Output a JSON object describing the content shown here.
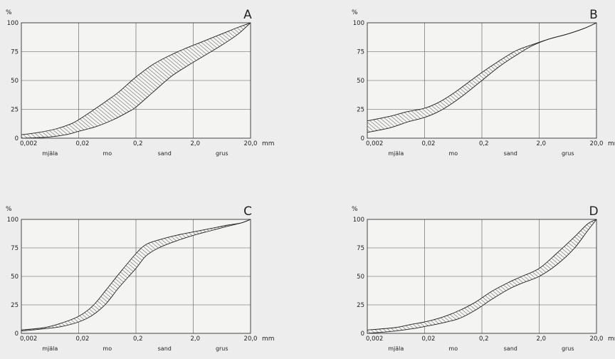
{
  "chart_data": [
    {
      "type": "area",
      "title": "A",
      "ylabel": "%",
      "xunit": "mm",
      "x_scale": "log",
      "xlim": [
        0.002,
        20.0
      ],
      "ylim": [
        0,
        100
      ],
      "xticks": [
        "0,002",
        "0,02",
        "0,2",
        "2,0",
        "20,0"
      ],
      "yticks": [
        "0",
        "25",
        "50",
        "75",
        "100"
      ],
      "soil_classes": [
        "mjäla",
        "mo",
        "sand",
        "grus"
      ],
      "grid": true,
      "series": [
        {
          "x": [
            0.002,
            0.004,
            0.008,
            0.014,
            0.02,
            0.035,
            0.06,
            0.1,
            0.2,
            0.4,
            0.8,
            1.5,
            3,
            6,
            12,
            20
          ],
          "values": [
            3,
            5,
            8,
            12,
            16,
            24,
            32,
            40,
            53,
            64,
            72,
            78,
            84,
            90,
            96,
            100
          ]
        },
        {
          "x": [
            0.002,
            0.006,
            0.012,
            0.02,
            0.04,
            0.08,
            0.15,
            0.2,
            0.4,
            0.8,
            1.5,
            3,
            6,
            12,
            20
          ],
          "values": [
            0,
            1,
            3,
            6,
            10,
            16,
            23,
            27,
            40,
            53,
            62,
            71,
            80,
            90,
            100
          ]
        }
      ]
    },
    {
      "type": "area",
      "title": "B",
      "ylabel": "%",
      "xunit": "mm",
      "x_scale": "log",
      "xlim": [
        0.002,
        20.0
      ],
      "ylim": [
        0,
        100
      ],
      "xticks": [
        "0,002",
        "0,02",
        "0,2",
        "2,0",
        "20,0"
      ],
      "yticks": [
        "0",
        "25",
        "50",
        "75",
        "100"
      ],
      "soil_classes": [
        "mjäla",
        "mo",
        "sand",
        "grus"
      ],
      "grid": true,
      "series": [
        {
          "x": [
            0.002,
            0.005,
            0.01,
            0.02,
            0.035,
            0.06,
            0.1,
            0.2,
            0.4,
            0.8,
            1.5,
            3,
            6,
            12,
            20
          ],
          "values": [
            15,
            19,
            23,
            26,
            31,
            38,
            46,
            57,
            67,
            76,
            81,
            86,
            90,
            95,
            100
          ]
        },
        {
          "x": [
            0.002,
            0.005,
            0.01,
            0.02,
            0.035,
            0.06,
            0.1,
            0.2,
            0.4,
            0.8,
            1.5,
            3,
            6,
            12,
            20
          ],
          "values": [
            5,
            9,
            14,
            18,
            23,
            30,
            38,
            50,
            62,
            72,
            80,
            86,
            90,
            95,
            100
          ]
        }
      ]
    },
    {
      "type": "area",
      "title": "C",
      "ylabel": "%",
      "xunit": "mm",
      "x_scale": "log",
      "xlim": [
        0.002,
        20.0
      ],
      "ylim": [
        0,
        100
      ],
      "xticks": [
        "0,002",
        "0,02",
        "0,2",
        "2,0",
        "20,0"
      ],
      "yticks": [
        "0",
        "25",
        "50",
        "75",
        "100"
      ],
      "soil_classes": [
        "mjäla",
        "mo",
        "sand",
        "grus"
      ],
      "grid": true,
      "series": [
        {
          "x": [
            0.002,
            0.005,
            0.01,
            0.02,
            0.035,
            0.06,
            0.1,
            0.2,
            0.3,
            0.5,
            1,
            2,
            4,
            8,
            14,
            20
          ],
          "values": [
            3,
            5,
            9,
            15,
            24,
            38,
            52,
            70,
            78,
            82,
            86,
            89,
            92,
            95,
            97,
            100
          ]
        },
        {
          "x": [
            0.002,
            0.005,
            0.01,
            0.02,
            0.035,
            0.06,
            0.1,
            0.2,
            0.3,
            0.5,
            1,
            2,
            4,
            8,
            14,
            20
          ],
          "values": [
            2,
            4,
            6,
            10,
            16,
            26,
            40,
            57,
            68,
            75,
            81,
            86,
            90,
            94,
            97,
            100
          ]
        }
      ]
    },
    {
      "type": "area",
      "title": "D",
      "ylabel": "%",
      "xunit": "mm",
      "x_scale": "log",
      "xlim": [
        0.002,
        20.0
      ],
      "ylim": [
        0,
        100
      ],
      "xticks": [
        "0,002",
        "0,02",
        "0,2",
        "2,0",
        "20,0"
      ],
      "yticks": [
        "0",
        "25",
        "50",
        "75",
        "100"
      ],
      "soil_classes": [
        "mjäla",
        "mo",
        "sand",
        "grus"
      ],
      "grid": true,
      "series": [
        {
          "x": [
            0.002,
            0.006,
            0.012,
            0.02,
            0.04,
            0.08,
            0.15,
            0.3,
            0.6,
            1,
            2,
            4,
            8,
            14,
            20
          ],
          "values": [
            3,
            5,
            8,
            10,
            14,
            20,
            27,
            37,
            45,
            50,
            57,
            70,
            84,
            96,
            100
          ]
        },
        {
          "x": [
            0.002,
            0.006,
            0.012,
            0.02,
            0.04,
            0.08,
            0.15,
            0.3,
            0.6,
            1,
            2,
            4,
            8,
            14,
            20
          ],
          "values": [
            0,
            2,
            4,
            6,
            9,
            13,
            20,
            30,
            39,
            44,
            50,
            60,
            74,
            90,
            100
          ]
        }
      ]
    }
  ]
}
